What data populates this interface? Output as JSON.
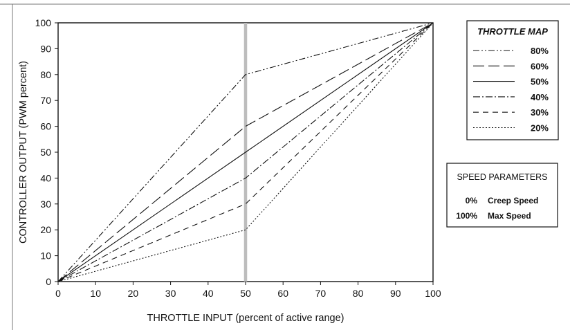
{
  "chart_data": {
    "type": "line",
    "xlabel": "THROTTLE INPUT  (percent of active range)",
    "ylabel": "CONTROLLER OUTPUT  (PWM percent)",
    "xlim": [
      0,
      100
    ],
    "ylim": [
      0,
      100
    ],
    "x_ticks": [
      0,
      10,
      20,
      30,
      40,
      50,
      60,
      70,
      80,
      90,
      100
    ],
    "y_ticks": [
      0,
      10,
      20,
      30,
      40,
      50,
      60,
      70,
      80,
      90,
      100
    ],
    "grid": false,
    "midpoint_marker": {
      "x": 50,
      "color": "#bdbdbd"
    },
    "legend": {
      "title": "THROTTLE MAP",
      "placement": "right-top"
    },
    "series": [
      {
        "name": "80%",
        "dash": "dash-dot-dot",
        "x": [
          0,
          50,
          100
        ],
        "y": [
          0,
          80,
          100
        ]
      },
      {
        "name": "60%",
        "dash": "long-dash",
        "x": [
          0,
          50,
          100
        ],
        "y": [
          0,
          60,
          100
        ]
      },
      {
        "name": "50%",
        "dash": "solid",
        "x": [
          0,
          50,
          100
        ],
        "y": [
          0,
          50,
          100
        ]
      },
      {
        "name": "40%",
        "dash": "dash-dot",
        "x": [
          0,
          50,
          100
        ],
        "y": [
          0,
          40,
          100
        ]
      },
      {
        "name": "30%",
        "dash": "dash",
        "x": [
          0,
          50,
          100
        ],
        "y": [
          0,
          30,
          100
        ]
      },
      {
        "name": "20%",
        "dash": "dot",
        "x": [
          0,
          50,
          100
        ],
        "y": [
          0,
          20,
          100
        ]
      }
    ],
    "annotation_box": {
      "title": "SPEED PARAMETERS",
      "rows": [
        {
          "value": "0%",
          "label": "Creep Speed"
        },
        {
          "value": "100%",
          "label": "Max Speed"
        }
      ]
    }
  }
}
